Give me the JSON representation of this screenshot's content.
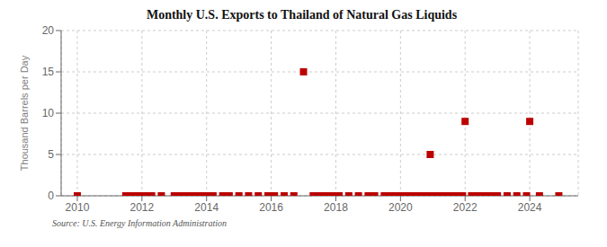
{
  "chart_data": {
    "type": "scatter",
    "title": "Monthly U.S. Exports to Thailand of Natural Gas Liquids",
    "ylabel": "Thousand Barrels per Day",
    "annotations": [
      "Source: U.S. Energy Information Administration"
    ],
    "color": "#bb0000",
    "marker": "square",
    "grid": true,
    "xlim": [
      2009.5,
      2025.5
    ],
    "ylim": [
      0,
      20
    ],
    "xticks": [
      2010,
      2012,
      2014,
      2016,
      2018,
      2020,
      2022,
      2024
    ],
    "yticks": [
      0,
      5,
      10,
      15,
      20
    ],
    "x": [
      2010.0,
      2011.5,
      2011.7,
      2011.9,
      2012.1,
      2012.3,
      2012.6,
      2013.0,
      2013.2,
      2013.4,
      2013.6,
      2013.8,
      2014.0,
      2014.2,
      2014.5,
      2014.7,
      2015.0,
      2015.3,
      2015.6,
      2015.9,
      2016.1,
      2016.4,
      2016.7,
      2017.0,
      2017.3,
      2017.5,
      2017.7,
      2017.9,
      2018.1,
      2018.4,
      2018.7,
      2019.0,
      2019.2,
      2019.5,
      2019.7,
      2019.9,
      2020.0,
      2020.2,
      2020.4,
      2020.6,
      2020.8,
      2020.92,
      2021.0,
      2021.2,
      2021.4,
      2021.6,
      2021.8,
      2021.92,
      2022.0,
      2022.2,
      2022.4,
      2022.6,
      2022.8,
      2023.0,
      2023.3,
      2023.6,
      2023.9,
      2024.0,
      2024.3,
      2024.9
    ],
    "values": [
      0.0,
      0.0,
      0.0,
      0.0,
      0.0,
      0.0,
      0.0,
      0.0,
      0.0,
      0.0,
      0.0,
      0.0,
      0.0,
      0.0,
      0.0,
      0.0,
      0.0,
      0.0,
      0.0,
      0.0,
      0.0,
      0.0,
      0.0,
      15.0,
      0.0,
      0.0,
      0.0,
      0.0,
      0.0,
      0.0,
      0.0,
      0.0,
      0.0,
      0.0,
      0.0,
      0.0,
      0.0,
      0.0,
      0.0,
      0.0,
      0.0,
      5.0,
      0.0,
      0.0,
      0.0,
      0.0,
      0.0,
      0.0,
      9.0,
      0.0,
      0.0,
      0.0,
      0.0,
      0.0,
      0.0,
      0.0,
      0.0,
      9.0,
      0.0,
      0.0
    ]
  }
}
